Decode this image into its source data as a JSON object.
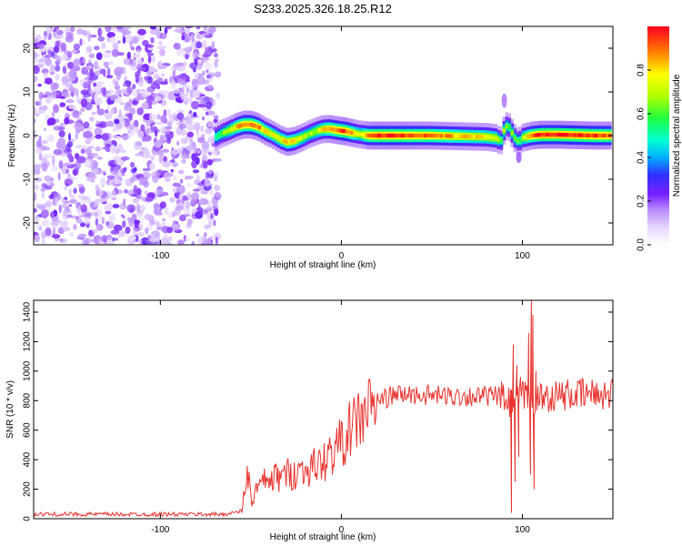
{
  "title": "S233.2025.326.18.25.R12",
  "chart_data": [
    {
      "type": "heatmap",
      "xlabel": "Height of straight line (km)",
      "ylabel": "Frequency (Hz)",
      "xlim": [
        -170,
        150
      ],
      "ylim": [
        -25,
        25
      ],
      "xticks": [
        -100,
        0,
        100
      ],
      "yticks": [
        -20,
        -10,
        0,
        10,
        20
      ],
      "colorbar": {
        "label": "Normalized spectral amplitude",
        "range": [
          0,
          1
        ],
        "ticks": [
          0.0,
          0.2,
          0.4,
          0.6,
          0.8
        ],
        "tick_labels": [
          "0.0",
          "0.2",
          "0.4",
          "0.6",
          "0.8"
        ]
      },
      "noise_region_x": [
        -170,
        -68
      ],
      "ridge_x": [
        -70,
        -66,
        -62,
        -58,
        -54,
        -50,
        -46,
        -42,
        -38,
        -34,
        -30,
        -26,
        -22,
        -18,
        -14,
        -10,
        -6,
        -2,
        2,
        6,
        10,
        15,
        20,
        30,
        40,
        50,
        60,
        70,
        80,
        86,
        88,
        90,
        92,
        94,
        96,
        98,
        100,
        105,
        110,
        120,
        130,
        140,
        148
      ],
      "ridge_freq": [
        -0.5,
        0.5,
        1.2,
        2.0,
        2.5,
        2.5,
        2.0,
        1.0,
        0.2,
        -0.8,
        -1.5,
        -1.2,
        -0.5,
        0.3,
        1.0,
        1.5,
        1.5,
        1.2,
        1.0,
        0.6,
        0.3,
        0.0,
        0.0,
        0.0,
        0.0,
        0.0,
        -0.1,
        -0.2,
        -0.3,
        -0.6,
        -1.5,
        1.5,
        2.5,
        0.8,
        -0.8,
        -1.5,
        -0.5,
        0.0,
        0.2,
        0.2,
        0.1,
        0.0,
        0.0
      ],
      "ridge_amp": [
        0.55,
        0.6,
        0.7,
        0.8,
        0.9,
        0.92,
        0.88,
        0.8,
        0.75,
        0.78,
        0.82,
        0.8,
        0.72,
        0.66,
        0.7,
        0.78,
        0.88,
        0.9,
        0.95,
        0.85,
        0.7,
        0.92,
        0.97,
        0.95,
        0.93,
        0.9,
        0.85,
        0.8,
        0.78,
        0.75,
        0.55,
        0.7,
        0.55,
        0.65,
        0.6,
        0.55,
        0.7,
        0.9,
        0.97,
        0.97,
        0.96,
        0.95,
        0.93
      ]
    },
    {
      "type": "line",
      "xlabel": "Height of straight line (km)",
      "ylabel": "SNR (10 * v/v)",
      "xlim": [
        -170,
        150
      ],
      "ylim": [
        0,
        1480
      ],
      "xticks": [
        -100,
        0,
        100
      ],
      "yticks": [
        0,
        200,
        400,
        600,
        800,
        1000,
        1200,
        1400
      ],
      "color": "#e8332e",
      "trend": {
        "x": [
          -170,
          -65,
          -55,
          -53,
          -51,
          -50,
          -45,
          -40,
          -30,
          -20,
          -10,
          0,
          10,
          20,
          30,
          40,
          60,
          80,
          88,
          92,
          96,
          100,
          104,
          108,
          112,
          130,
          150
        ],
        "y": [
          30,
          30,
          50,
          250,
          300,
          120,
          230,
          260,
          300,
          330,
          380,
          520,
          680,
          800,
          840,
          840,
          830,
          830,
          830,
          780,
          780,
          830,
          830,
          800,
          830,
          840,
          850
        ]
      },
      "spikes": [
        {
          "x": 94.0,
          "y": 40
        },
        {
          "x": 95.0,
          "y": 1180
        },
        {
          "x": 96.0,
          "y": 250
        },
        {
          "x": 97.0,
          "y": 1040
        },
        {
          "x": 98.0,
          "y": 420
        },
        {
          "x": 99.0,
          "y": 960
        },
        {
          "x": 103.5,
          "y": 1260
        },
        {
          "x": 104.5,
          "y": 300
        },
        {
          "x": 105.0,
          "y": 1480
        },
        {
          "x": 105.8,
          "y": 1380
        },
        {
          "x": 106.5,
          "y": 200
        },
        {
          "x": 107.5,
          "y": 1000
        }
      ]
    }
  ]
}
